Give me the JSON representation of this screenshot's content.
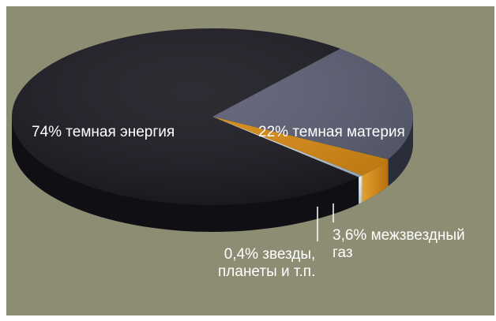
{
  "chart_data": {
    "type": "pie",
    "title": "",
    "slices": [
      {
        "label_line1": "74% темная энергия",
        "label_line2": "",
        "value": 74,
        "color": "#1c1a22"
      },
      {
        "label_line1": "22% темная материя",
        "label_line2": "",
        "value": 22,
        "color": "#5a5e72"
      },
      {
        "label_line1": "3,6% межзвездный",
        "label_line2": "газ",
        "value": 3.6,
        "color": "#d98a12"
      },
      {
        "label_line1": "0,4% звезды,",
        "label_line2": "планеты и т.п.",
        "value": 0.4,
        "color": "#e8e8e0"
      }
    ]
  },
  "colors": {
    "background": "#8c8d73",
    "side": "#101014",
    "label": "#ffffff"
  }
}
